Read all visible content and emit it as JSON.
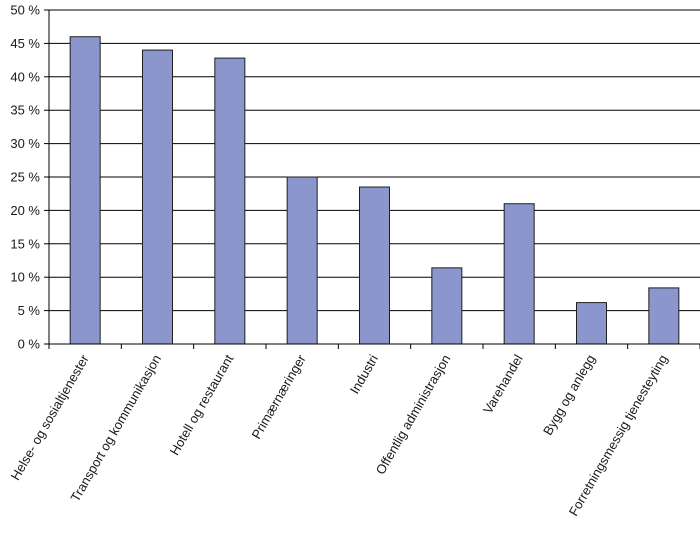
{
  "chart_data": {
    "type": "bar",
    "categories": [
      "Helse- og sosialtjenester",
      "Transport og kommunikasjon",
      "Hotell og restaurant",
      "Primærnæringer",
      "Industri",
      "Offentlig administrasjon",
      "Varehandel",
      "Bygg og anlegg",
      "Forretningsmessig tjenesteyting"
    ],
    "values": [
      46,
      44,
      42.8,
      25,
      23.5,
      11.4,
      21,
      6.2,
      8.4
    ],
    "ylim": [
      0,
      50
    ],
    "yticks": [
      0,
      5,
      10,
      15,
      20,
      25,
      30,
      35,
      40,
      45,
      50
    ],
    "ytick_labels": [
      "0 %",
      "5 %",
      "10 %",
      "15 %",
      "20 %",
      "25 %",
      "30 %",
      "35 %",
      "40 %",
      "45 %",
      "50 %"
    ],
    "grid": true,
    "bar_color": "#8a96cc",
    "bar_edge_color": "#1f1f1f",
    "axis_color": "#000000"
  }
}
